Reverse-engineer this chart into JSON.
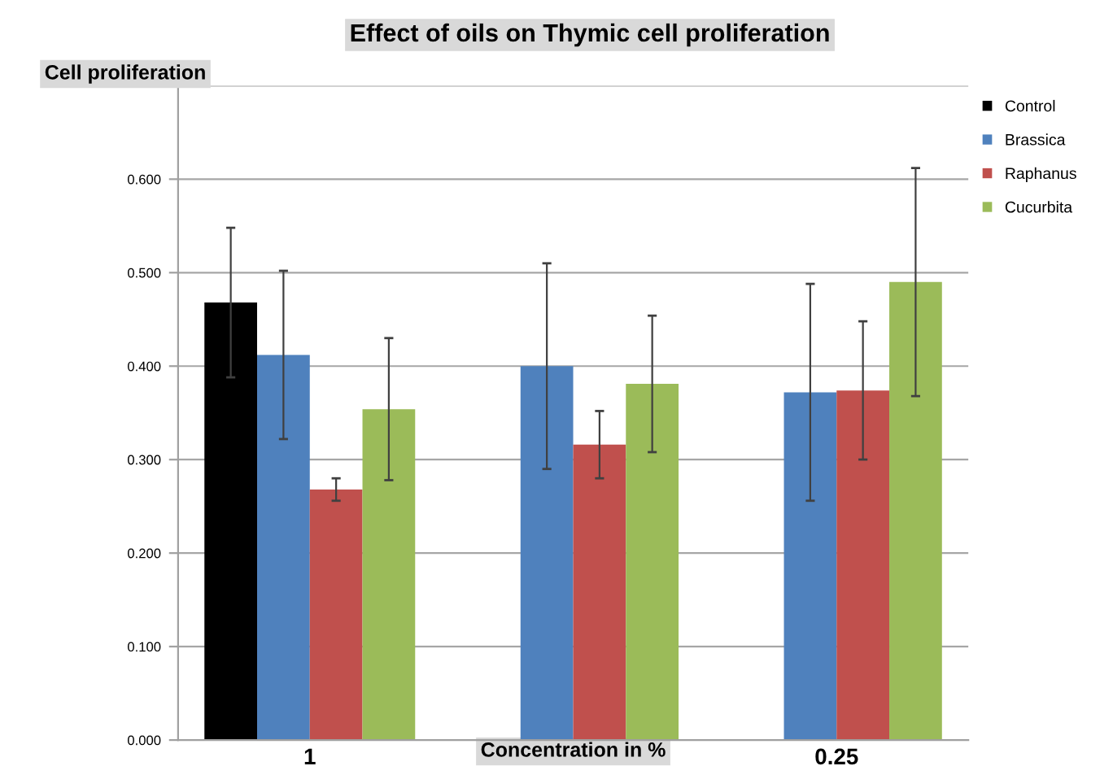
{
  "chart_data": {
    "type": "bar",
    "title": "Effect of oils on Thymic cell proliferation",
    "ylabel": "Cell proliferation",
    "xlabel": "Concentration in %",
    "categories": [
      "1",
      null,
      "0.25"
    ],
    "series": [
      {
        "name": "Control",
        "color": "#000000",
        "values": [
          0.468,
          null,
          null
        ],
        "errors": [
          0.08,
          null,
          null
        ]
      },
      {
        "name": "Brassica",
        "color": "#4f81bd",
        "values": [
          0.412,
          0.4,
          0.372
        ],
        "errors": [
          0.09,
          0.11,
          0.116
        ]
      },
      {
        "name": "Raphanus",
        "color": "#c0504d",
        "values": [
          0.268,
          0.316,
          0.374
        ],
        "errors": [
          0.012,
          0.036,
          0.074
        ]
      },
      {
        "name": "Cucurbita",
        "color": "#9bbb59",
        "values": [
          0.354,
          0.381,
          0.49
        ],
        "errors": [
          0.076,
          0.073,
          0.122
        ]
      }
    ],
    "ylim": [
      0,
      0.7
    ],
    "yticks": [
      {
        "value": 0,
        "label": "0.000"
      },
      {
        "value": 0.1,
        "label": "0.100"
      },
      {
        "value": 0.2,
        "label": "0.200"
      },
      {
        "value": 0.3,
        "label": "0.300"
      },
      {
        "value": 0.4,
        "label": "0.400"
      },
      {
        "value": 0.5,
        "label": "0.500"
      },
      {
        "value": 0.6,
        "label": "0.600"
      },
      {
        "value": 0.7,
        "label": null
      }
    ],
    "grid": "y",
    "legend": "right"
  }
}
